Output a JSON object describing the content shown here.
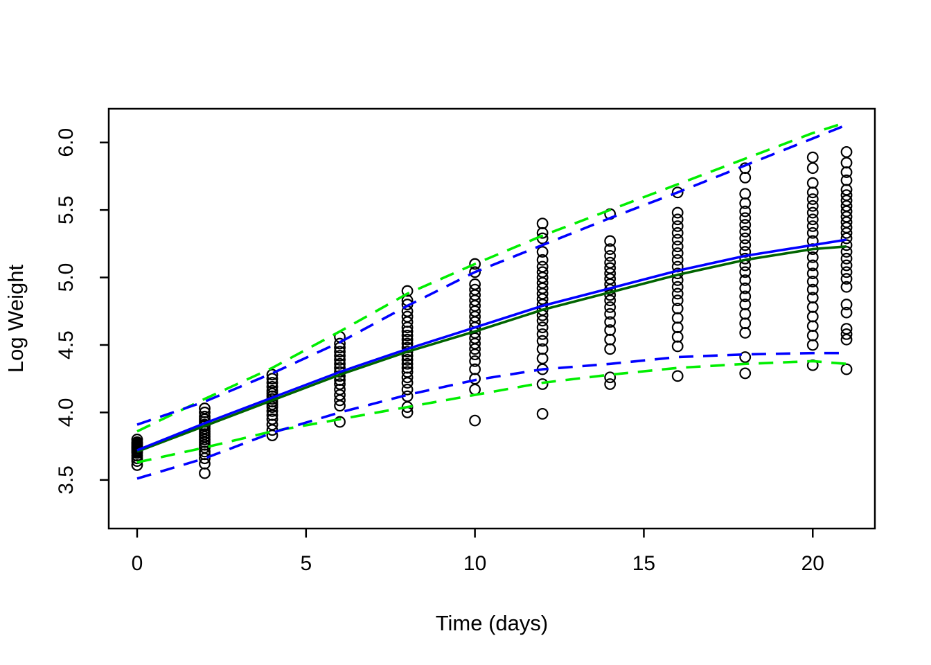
{
  "figure": {
    "background": "#ffffff",
    "frame_color": "#000000"
  },
  "colors": {
    "points": "#000000",
    "fit_blue": "#0000ff",
    "fit_green": "#006400",
    "interval_blue": "#0000ff",
    "interval_green": "#00ee00"
  },
  "chart_data": {
    "type": "scatter",
    "title": "",
    "xlabel": "Time (days)",
    "ylabel": "Log Weight",
    "xlim": [
      -0.84,
      21.84
    ],
    "ylim": [
      3.14,
      6.25
    ],
    "x_ticks": [
      0,
      5,
      10,
      15,
      20
    ],
    "y_ticks": [
      3.5,
      4.0,
      4.5,
      5.0,
      5.5,
      6.0
    ],
    "grid": false,
    "legend": "none",
    "marker": "open-circle",
    "scatter_groups": [
      {
        "x": 0,
        "y": [
          3.61,
          3.64,
          3.66,
          3.68,
          3.7,
          3.71,
          3.72,
          3.73,
          3.74,
          3.74,
          3.75,
          3.76,
          3.77,
          3.78,
          3.8
        ]
      },
      {
        "x": 2,
        "y": [
          3.55,
          3.62,
          3.66,
          3.69,
          3.71,
          3.74,
          3.76,
          3.78,
          3.8,
          3.82,
          3.84,
          3.86,
          3.88,
          3.9,
          3.91,
          3.93,
          3.95,
          3.97,
          4.0,
          4.03
        ]
      },
      {
        "x": 4,
        "y": [
          3.83,
          3.87,
          3.91,
          3.95,
          3.98,
          4.01,
          4.04,
          4.06,
          4.08,
          4.1,
          4.12,
          4.14,
          4.16,
          4.19,
          4.22,
          4.25,
          4.28
        ]
      },
      {
        "x": 6,
        "y": [
          3.93,
          4.05,
          4.09,
          4.13,
          4.17,
          4.21,
          4.24,
          4.27,
          4.3,
          4.33,
          4.36,
          4.39,
          4.42,
          4.45,
          4.48,
          4.51,
          4.56
        ]
      },
      {
        "x": 8,
        "y": [
          4.0,
          4.04,
          4.12,
          4.17,
          4.22,
          4.26,
          4.3,
          4.33,
          4.36,
          4.39,
          4.42,
          4.45,
          4.48,
          4.51,
          4.54,
          4.57,
          4.6,
          4.63,
          4.67,
          4.71,
          4.75,
          4.8,
          4.83,
          4.9
        ]
      },
      {
        "x": 10,
        "y": [
          3.94,
          4.17,
          4.25,
          4.32,
          4.38,
          4.43,
          4.47,
          4.51,
          4.55,
          4.59,
          4.63,
          4.67,
          4.71,
          4.75,
          4.79,
          4.83,
          4.87,
          4.91,
          4.95,
          5.04,
          5.1
        ]
      },
      {
        "x": 12,
        "y": [
          3.99,
          4.21,
          4.32,
          4.4,
          4.47,
          4.53,
          4.58,
          4.63,
          4.68,
          4.72,
          4.76,
          4.8,
          4.84,
          4.88,
          4.92,
          4.96,
          5.0,
          5.04,
          5.08,
          5.13,
          5.19,
          5.29,
          5.33,
          5.4
        ]
      },
      {
        "x": 14,
        "y": [
          4.21,
          4.26,
          4.47,
          4.54,
          4.61,
          4.67,
          4.73,
          4.78,
          4.83,
          4.87,
          4.91,
          4.95,
          4.99,
          5.03,
          5.07,
          5.11,
          5.16,
          5.21,
          5.27,
          5.47
        ]
      },
      {
        "x": 16,
        "y": [
          4.27,
          4.49,
          4.56,
          4.63,
          4.7,
          4.77,
          4.83,
          4.88,
          4.93,
          4.98,
          5.03,
          5.08,
          5.13,
          5.18,
          5.23,
          5.28,
          5.33,
          5.38,
          5.43,
          5.48,
          5.63
        ]
      },
      {
        "x": 18,
        "y": [
          4.29,
          4.41,
          4.59,
          4.66,
          4.73,
          4.8,
          4.86,
          4.92,
          4.98,
          5.04,
          5.09,
          5.14,
          5.19,
          5.24,
          5.29,
          5.34,
          5.39,
          5.44,
          5.49,
          5.55,
          5.62,
          5.74,
          5.81
        ]
      },
      {
        "x": 20,
        "y": [
          4.35,
          4.5,
          4.57,
          4.64,
          4.71,
          4.78,
          4.85,
          4.91,
          4.97,
          5.03,
          5.09,
          5.15,
          5.21,
          5.27,
          5.33,
          5.38,
          5.43,
          5.48,
          5.53,
          5.58,
          5.63,
          5.7,
          5.81,
          5.89
        ]
      },
      {
        "x": 21,
        "y": [
          4.32,
          4.54,
          4.58,
          4.62,
          4.74,
          4.8,
          4.93,
          4.99,
          5.04,
          5.09,
          5.14,
          5.19,
          5.24,
          5.29,
          5.33,
          5.37,
          5.41,
          5.45,
          5.49,
          5.53,
          5.57,
          5.61,
          5.65,
          5.72,
          5.78,
          5.85,
          5.93
        ]
      }
    ],
    "lines": [
      {
        "name": "lower-interval-green-dashed",
        "color": "#00ee00",
        "style": "dashed",
        "x": [
          0,
          2,
          4,
          6,
          8,
          10,
          12,
          14,
          16,
          18,
          20,
          21
        ],
        "y": [
          3.63,
          3.74,
          3.86,
          3.95,
          4.04,
          4.13,
          4.22,
          4.28,
          4.33,
          4.36,
          4.38,
          4.36
        ]
      },
      {
        "name": "lower-interval-blue-dashed",
        "color": "#0000ff",
        "style": "dashed",
        "x": [
          0,
          2,
          4,
          6,
          8,
          10,
          12,
          14,
          16,
          18,
          20,
          21
        ],
        "y": [
          3.51,
          3.66,
          3.85,
          4.0,
          4.13,
          4.24,
          4.32,
          4.36,
          4.41,
          4.43,
          4.44,
          4.44
        ]
      },
      {
        "name": "upper-interval-green-dashed",
        "color": "#00ee00",
        "style": "dashed",
        "x": [
          0,
          2,
          4,
          6,
          8,
          10,
          12,
          14,
          16,
          18,
          20,
          21
        ],
        "y": [
          3.86,
          4.1,
          4.33,
          4.6,
          4.88,
          5.1,
          5.31,
          5.5,
          5.69,
          5.88,
          6.07,
          6.15
        ]
      },
      {
        "name": "upper-interval-blue-dashed",
        "color": "#0000ff",
        "style": "dashed",
        "x": [
          0,
          2,
          4,
          6,
          8,
          10,
          12,
          14,
          16,
          18,
          20,
          21
        ],
        "y": [
          3.91,
          4.08,
          4.29,
          4.52,
          4.79,
          5.04,
          5.24,
          5.44,
          5.63,
          5.83,
          6.03,
          6.13
        ]
      },
      {
        "name": "mean-fit-green-solid",
        "color": "#006400",
        "style": "solid",
        "x": [
          0,
          2,
          4,
          6,
          8,
          10,
          12,
          14,
          16,
          18,
          20,
          21
        ],
        "y": [
          3.71,
          3.9,
          4.09,
          4.28,
          4.45,
          4.6,
          4.76,
          4.89,
          5.02,
          5.13,
          5.21,
          5.23
        ]
      },
      {
        "name": "mean-fit-blue-solid",
        "color": "#0000ff",
        "style": "solid",
        "x": [
          0,
          2,
          4,
          6,
          8,
          10,
          12,
          14,
          16,
          18,
          20,
          21
        ],
        "y": [
          3.72,
          3.92,
          4.11,
          4.3,
          4.47,
          4.63,
          4.79,
          4.92,
          5.05,
          5.16,
          5.24,
          5.28
        ]
      }
    ]
  }
}
